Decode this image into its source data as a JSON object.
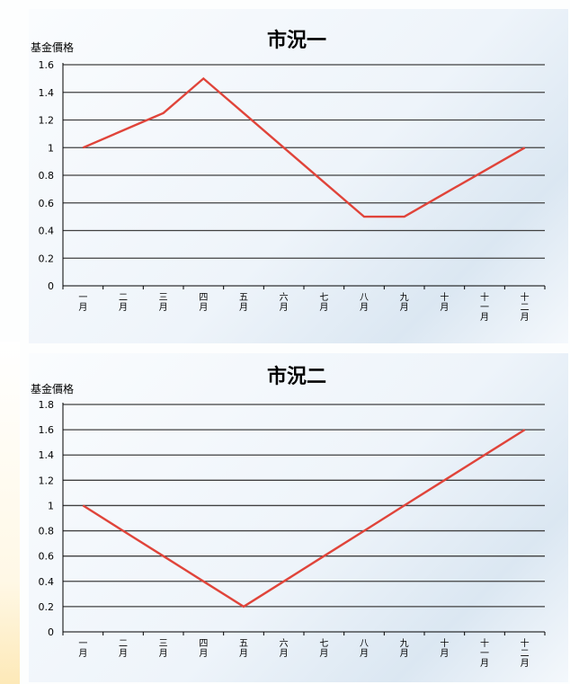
{
  "chart_data": [
    {
      "type": "line",
      "title": "市況一",
      "ylabel": "基金價格",
      "xlabel": "",
      "categories": [
        "一月",
        "二月",
        "三月",
        "四月",
        "五月",
        "六月",
        "七月",
        "八月",
        "九月",
        "十月",
        "十一月",
        "十二月"
      ],
      "yticks": [
        "0",
        "0.2",
        "0.4",
        "0.6",
        "0.8",
        "1",
        "1.2",
        "1.4",
        "1.6"
      ],
      "ylim": [
        0,
        1.6
      ],
      "grid": true,
      "legend": "none",
      "series": [
        {
          "values": [
            1.0,
            1.125,
            1.25,
            1.5,
            1.25,
            1.0,
            0.75,
            0.5,
            0.5,
            0.667,
            0.833,
            1.0
          ],
          "color": "#e0443a"
        }
      ]
    },
    {
      "type": "line",
      "title": "市況二",
      "ylabel": "基金價格",
      "xlabel": "",
      "categories": [
        "一月",
        "二月",
        "三月",
        "四月",
        "五月",
        "六月",
        "七月",
        "八月",
        "九月",
        "十月",
        "十一月",
        "十二月"
      ],
      "yticks": [
        "0",
        "0.2",
        "0.4",
        "0.6",
        "0.8",
        "1",
        "1.2",
        "1.4",
        "1.6",
        "1.8"
      ],
      "ylim": [
        0,
        1.8
      ],
      "grid": true,
      "legend": "none",
      "series": [
        {
          "values": [
            1.0,
            0.8,
            0.6,
            0.4,
            0.2,
            0.4,
            0.6,
            0.8,
            1.0,
            1.2,
            1.4,
            1.6
          ],
          "color": "#e0443a"
        }
      ]
    }
  ]
}
